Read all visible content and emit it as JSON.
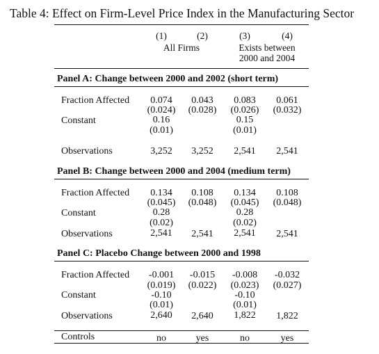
{
  "title": "Table 4: Effect on Firm-Level Price Index in the Manufacturing Sector",
  "columns": {
    "nums": [
      "(1)",
      "(2)",
      "(3)",
      "(4)"
    ],
    "groups": [
      "All Firms",
      "Exists between",
      "2000 and 2004"
    ]
  },
  "panel_a": {
    "title": "Panel A: Change between 2000 and 2002 (short term)",
    "fraction_label": "Fraction Affected",
    "fraction": [
      "0.074",
      "0.043",
      "0.083",
      "0.061"
    ],
    "fraction_se": [
      "(0.024)",
      "(0.028)",
      "(0.026)",
      "(0.032)"
    ],
    "constant_label": "Constant",
    "constant": [
      "0.16",
      "0.15"
    ],
    "constant_se": [
      "(0.01)",
      "(0.01)"
    ],
    "obs_label": "Observations",
    "obs": [
      "3,252",
      "3,252",
      "2,541",
      "2,541"
    ]
  },
  "panel_b": {
    "title": "Panel B: Change between 2000 and 2004 (medium term)",
    "fraction_label": "Fraction Affected",
    "fraction": [
      "0.134",
      "0.108",
      "0.134",
      "0.108"
    ],
    "fraction_se": [
      "(0.045)",
      "(0.048)",
      "(0.045)",
      "(0.048)"
    ],
    "constant_label": "Constant",
    "constant": [
      "0.28",
      "0.28"
    ],
    "constant_se": [
      "(0.02)",
      "(0.02)"
    ],
    "obs_label": "Observations",
    "obs": [
      "2,541",
      "2,541",
      "2,541",
      "2,541"
    ]
  },
  "panel_c": {
    "title": "Panel C: Placebo Change between 2000 and 1998",
    "fraction_label": "Fraction Affected",
    "fraction": [
      "-0.001",
      "-0.015",
      "-0.008",
      "-0.032"
    ],
    "fraction_se": [
      "(0.019)",
      "(0.022)",
      "(0.023)",
      "(0.027)"
    ],
    "constant_label": "Constant",
    "constant": [
      "-0.10",
      "-0.10"
    ],
    "constant_se": [
      "(0.01)",
      "(0.01)"
    ],
    "obs_label": "Observations",
    "obs": [
      "2,640",
      "2,640",
      "1,822",
      "1,822"
    ]
  },
  "controls": {
    "label": "Controls",
    "values": [
      "no",
      "yes",
      "no",
      "yes"
    ]
  }
}
